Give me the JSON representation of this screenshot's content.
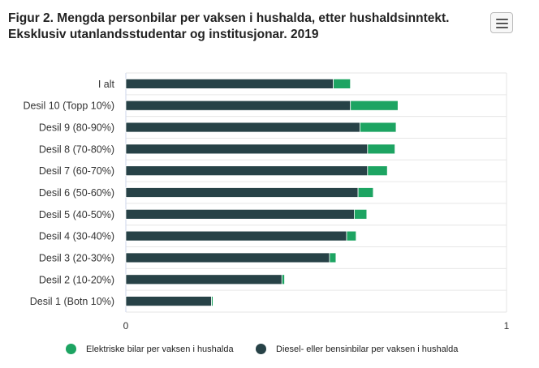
{
  "header": {
    "title_line1": "Figur 2. Mengda personbilar per vaksen i hushalda, etter hushaldsinntekt.",
    "title_line2": "Eksklusiv utanlandsstudentar og institusjonar. 2019",
    "menu_icon": "hamburger-menu-icon"
  },
  "colors": {
    "diesel": "#274247",
    "electric": "#1da462",
    "grid": "#e6e6e6",
    "axis": "#ccd6eb"
  },
  "chart_data": {
    "type": "bar",
    "orientation": "horizontal",
    "stacked": true,
    "title": "Figur 2. Mengda personbilar per vaksen i hushalda, etter hushaldsinntekt. Eksklusiv utanlandsstudentar og institusjonar. 2019",
    "categories": [
      "I alt",
      "Desil 10 (Topp 10%)",
      "Desil 9 (80-90%)",
      "Desil 8 (70-80%)",
      "Desil 7 (60-70%)",
      "Desil 6 (50-60%)",
      "Desil 5 (40-50%)",
      "Desil 4 (30-40%)",
      "Desil 3 (20-30%)",
      "Desil 2 (10-20%)",
      "Desil 1 (Botn 10%)"
    ],
    "series": [
      {
        "name": "Diesel- eller bensinbilar per vaksen i hushalda",
        "values": [
          0.545,
          0.59,
          0.615,
          0.635,
          0.635,
          0.61,
          0.6,
          0.58,
          0.535,
          0.41,
          0.225
        ]
      },
      {
        "name": "Elektriske bilar per vaksen i hushalda",
        "values": [
          0.045,
          0.125,
          0.095,
          0.072,
          0.052,
          0.04,
          0.033,
          0.025,
          0.017,
          0.007,
          0.004
        ]
      }
    ],
    "xlim": [
      0,
      1
    ],
    "xticks": [
      "0",
      "1"
    ],
    "xlabel": "",
    "ylabel": "",
    "grid": true,
    "legend_position": "bottom"
  },
  "legend": [
    {
      "label": "Elektriske bilar per vaksen i hushalda",
      "series_index": 1
    },
    {
      "label": "Diesel- eller bensinbilar per vaksen i hushalda",
      "series_index": 0
    }
  ]
}
